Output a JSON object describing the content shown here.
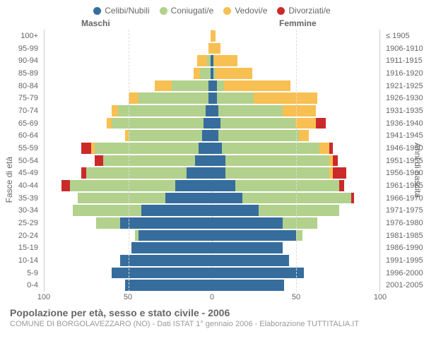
{
  "legend": [
    {
      "label": "Celibi/Nubili",
      "color": "#366d9d"
    },
    {
      "label": "Coniugati/e",
      "color": "#b2d18c"
    },
    {
      "label": "Vedovi/e",
      "color": "#f8c052"
    },
    {
      "label": "Divorziati/e",
      "color": "#cb2a2b"
    }
  ],
  "header_male": "Maschi",
  "header_female": "Femmine",
  "axis_left_title": "Fasce di età",
  "axis_right_title": "Anni di nascita",
  "x_ticks": [
    {
      "label": "100",
      "pos": 0
    },
    {
      "label": "50",
      "pos": 25
    },
    {
      "label": "0",
      "pos": 50
    },
    {
      "label": "50",
      "pos": 75
    },
    {
      "label": "100",
      "pos": 100
    }
  ],
  "grid_positions_pct": [
    25,
    75
  ],
  "max_value": 100,
  "rows": [
    {
      "age": "100+",
      "birth": "≤ 1905",
      "m": [
        0,
        0,
        1,
        0
      ],
      "f": [
        0,
        0,
        2,
        0
      ]
    },
    {
      "age": "95-99",
      "birth": "1906-1910",
      "m": [
        0,
        0,
        2,
        0
      ],
      "f": [
        0,
        0,
        5,
        0
      ]
    },
    {
      "age": "90-94",
      "birth": "1911-1915",
      "m": [
        1,
        2,
        6,
        0
      ],
      "f": [
        1,
        0,
        14,
        0
      ]
    },
    {
      "age": "85-89",
      "birth": "1916-1920",
      "m": [
        1,
        6,
        4,
        0
      ],
      "f": [
        1,
        1,
        22,
        0
      ]
    },
    {
      "age": "80-84",
      "birth": "1921-1925",
      "m": [
        2,
        22,
        10,
        0
      ],
      "f": [
        3,
        4,
        40,
        0
      ]
    },
    {
      "age": "75-79",
      "birth": "1926-1930",
      "m": [
        2,
        42,
        6,
        0
      ],
      "f": [
        3,
        22,
        38,
        0
      ]
    },
    {
      "age": "70-74",
      "birth": "1931-1935",
      "m": [
        4,
        52,
        4,
        0
      ],
      "f": [
        4,
        38,
        20,
        0
      ]
    },
    {
      "age": "65-69",
      "birth": "1936-1940",
      "m": [
        5,
        55,
        3,
        0
      ],
      "f": [
        5,
        45,
        12,
        6
      ]
    },
    {
      "age": "60-64",
      "birth": "1941-1945",
      "m": [
        6,
        44,
        2,
        0
      ],
      "f": [
        4,
        48,
        6,
        0
      ]
    },
    {
      "age": "55-59",
      "birth": "1946-1950",
      "m": [
        8,
        62,
        2,
        6
      ],
      "f": [
        6,
        58,
        6,
        2
      ]
    },
    {
      "age": "50-54",
      "birth": "1951-1955",
      "m": [
        10,
        55,
        0,
        5
      ],
      "f": [
        8,
        62,
        2,
        3
      ]
    },
    {
      "age": "45-49",
      "birth": "1956-1960",
      "m": [
        15,
        60,
        0,
        3
      ],
      "f": [
        8,
        62,
        2,
        8
      ]
    },
    {
      "age": "40-44",
      "birth": "1961-1965",
      "m": [
        22,
        63,
        0,
        5
      ],
      "f": [
        14,
        62,
        0,
        3
      ]
    },
    {
      "age": "35-39",
      "birth": "1966-1970",
      "m": [
        28,
        52,
        0,
        0
      ],
      "f": [
        18,
        65,
        0,
        2
      ]
    },
    {
      "age": "30-34",
      "birth": "1971-1975",
      "m": [
        42,
        41,
        0,
        0
      ],
      "f": [
        28,
        48,
        0,
        0
      ]
    },
    {
      "age": "25-29",
      "birth": "1976-1980",
      "m": [
        55,
        14,
        0,
        0
      ],
      "f": [
        42,
        21,
        0,
        0
      ]
    },
    {
      "age": "20-24",
      "birth": "1981-1985",
      "m": [
        44,
        2,
        0,
        0
      ],
      "f": [
        50,
        4,
        0,
        0
      ]
    },
    {
      "age": "15-19",
      "birth": "1986-1990",
      "m": [
        48,
        0,
        0,
        0
      ],
      "f": [
        42,
        0,
        0,
        0
      ]
    },
    {
      "age": "10-14",
      "birth": "1991-1995",
      "m": [
        55,
        0,
        0,
        0
      ],
      "f": [
        46,
        0,
        0,
        0
      ]
    },
    {
      "age": "5-9",
      "birth": "1996-2000",
      "m": [
        60,
        0,
        0,
        0
      ],
      "f": [
        55,
        0,
        0,
        0
      ]
    },
    {
      "age": "0-4",
      "birth": "2001-2005",
      "m": [
        52,
        0,
        0,
        0
      ],
      "f": [
        43,
        0,
        0,
        0
      ]
    }
  ],
  "footer_title": "Popolazione per età, sesso e stato civile - 2006",
  "footer_sub": "COMUNE DI BORGOLAVEZZARO (NO) - Dati ISTAT 1° gennaio 2006 - Elaborazione TUTTITALIA.IT"
}
